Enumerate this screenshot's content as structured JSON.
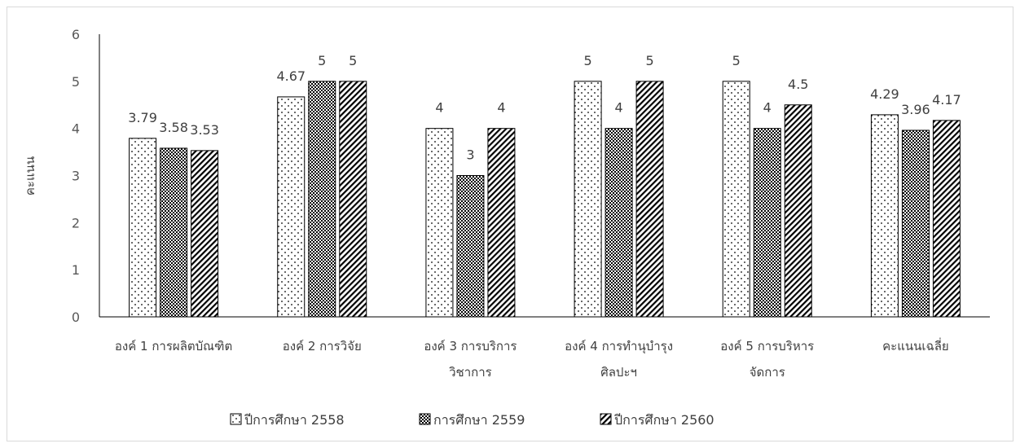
{
  "chart_data": {
    "type": "bar",
    "ylabel": "คะแนน",
    "xlabel": "",
    "ylim": [
      0,
      6
    ],
    "yticks": [
      0,
      1,
      2,
      3,
      4,
      5,
      6
    ],
    "grid": false,
    "legend_position": "bottom",
    "categories": [
      [
        "องค์ 1 การผลิตบัณฑิต"
      ],
      [
        "องค์ 2 การวิจัย"
      ],
      [
        "องค์ 3 การบริการ",
        "วิชาการ"
      ],
      [
        "องค์ 4 การทำนุบำรุง",
        "ศิลปะฯ"
      ],
      [
        "องค์ 5 การบริหาร",
        "จัดการ"
      ],
      [
        "คะแนนเฉลี่ย"
      ]
    ],
    "series": [
      {
        "name": "ปีการศึกษา 2558",
        "pattern": "dots",
        "values": [
          3.79,
          4.67,
          4,
          5,
          5,
          4.29
        ],
        "labels": [
          "3.79",
          "4.67",
          "4",
          "5",
          "5",
          "4.29"
        ]
      },
      {
        "name": "การศึกษา 2559",
        "pattern": "checker",
        "values": [
          3.58,
          5,
          3,
          4,
          4,
          3.96
        ],
        "labels": [
          "3.58",
          "5",
          "3",
          "4",
          "4",
          "3.96"
        ]
      },
      {
        "name": "ปีการศึกษา 2560",
        "pattern": "diagonal",
        "values": [
          3.53,
          5,
          4,
          5,
          4.5,
          4.17
        ],
        "labels": [
          "3.53",
          "5",
          "4",
          "5",
          "4.5",
          "4.17"
        ]
      }
    ]
  }
}
